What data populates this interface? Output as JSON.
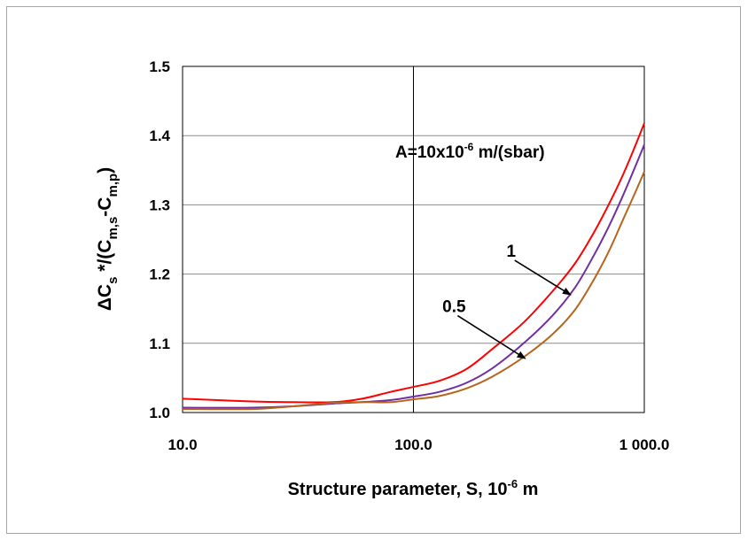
{
  "chart_data": {
    "type": "line",
    "title": "",
    "xlabel": "Structure parameter, S, 10",
    "xlabel_exponent": "-6",
    "xlabel_unit": " m",
    "ylabel_parts": [
      "ΔC",
      "s",
      " *",
      "/(C",
      "m,s",
      "-C",
      "m,p",
      ")"
    ],
    "x_scale": "log",
    "xlim": [
      10,
      1000
    ],
    "ylim": [
      1.0,
      1.5
    ],
    "x_ticks": [
      10,
      100,
      1000
    ],
    "x_tick_labels": [
      "10.0",
      "100.0",
      "1 000.0"
    ],
    "y_ticks": [
      1.0,
      1.1,
      1.2,
      1.3,
      1.4,
      1.5
    ],
    "y_tick_labels": [
      "1.0",
      "1.1",
      "1.2",
      "1.3",
      "1.4",
      "1.5"
    ],
    "grid": {
      "horizontal": true,
      "vertical_at": [
        100
      ]
    },
    "legend": "none",
    "series": [
      {
        "label": "1",
        "color": "#ff0000",
        "x": [
          10,
          20,
          30,
          45,
          60,
          80,
          100,
          130,
          170,
          220,
          300,
          400,
          500,
          600,
          700,
          800,
          900,
          1000
        ],
        "y": [
          1.02,
          1.016,
          1.015,
          1.015,
          1.02,
          1.03,
          1.037,
          1.046,
          1.063,
          1.092,
          1.13,
          1.175,
          1.215,
          1.258,
          1.3,
          1.34,
          1.38,
          1.418
        ]
      },
      {
        "label": "0.5",
        "color": "#7030a0",
        "x": [
          10,
          20,
          30,
          45,
          60,
          80,
          100,
          130,
          170,
          220,
          300,
          400,
          500,
          600,
          700,
          800,
          900,
          1000
        ],
        "y": [
          1.007,
          1.007,
          1.009,
          1.013,
          1.015,
          1.018,
          1.023,
          1.03,
          1.043,
          1.064,
          1.1,
          1.14,
          1.18,
          1.225,
          1.268,
          1.31,
          1.35,
          1.387
        ]
      },
      {
        "label": "",
        "color": "#b5651d",
        "x": [
          10,
          20,
          30,
          45,
          60,
          80,
          100,
          130,
          170,
          220,
          300,
          400,
          500,
          600,
          700,
          800,
          900,
          1000
        ],
        "y": [
          1.005,
          1.005,
          1.009,
          1.014,
          1.015,
          1.015,
          1.019,
          1.024,
          1.035,
          1.052,
          1.08,
          1.113,
          1.148,
          1.19,
          1.232,
          1.275,
          1.313,
          1.348
        ]
      }
    ],
    "annotations": {
      "param_label_main": "A=10x10",
      "param_label_exponent": "-6",
      "param_label_unit": " m/(sbar)",
      "curve_labels": [
        {
          "text": "1",
          "text_at": [
            265,
            1.225
          ],
          "arrow_to": [
            480,
            1.17
          ]
        },
        {
          "text": "0.5",
          "text_at": [
            150,
            1.145
          ],
          "arrow_to": [
            305,
            1.078
          ]
        }
      ]
    }
  }
}
